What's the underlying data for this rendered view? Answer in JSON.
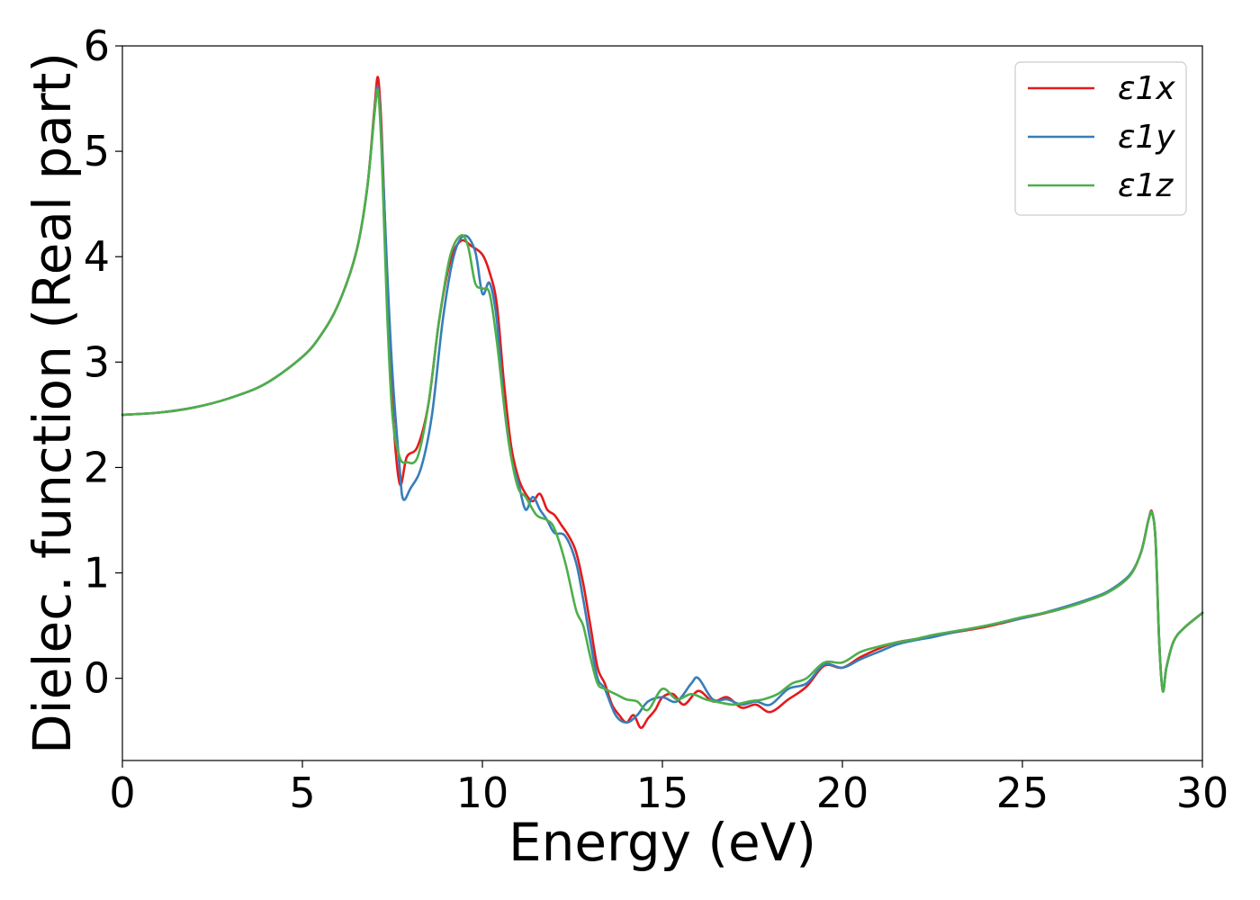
{
  "chart_data": {
    "type": "line",
    "title": "",
    "xlabel": "Energy (eV)",
    "ylabel": "Dielec. function (Real part)",
    "xlim": [
      0,
      30
    ],
    "ylim": [
      -0.78,
      6.0
    ],
    "xticks": [
      "0",
      "5",
      "10",
      "15",
      "20",
      "25",
      "30"
    ],
    "yticks": [
      "0",
      "1",
      "2",
      "3",
      "4",
      "5",
      "6"
    ],
    "grid": false,
    "legend_position": "top-right",
    "series": [
      {
        "name": "ε1x",
        "color": "#e41a1c",
        "points": [
          [
            0,
            2.5
          ],
          [
            1,
            2.52
          ],
          [
            2,
            2.57
          ],
          [
            3,
            2.66
          ],
          [
            4,
            2.8
          ],
          [
            5,
            3.05
          ],
          [
            5.5,
            3.25
          ],
          [
            6,
            3.55
          ],
          [
            6.5,
            4.05
          ],
          [
            6.8,
            4.65
          ],
          [
            7.0,
            5.4
          ],
          [
            7.1,
            5.7
          ],
          [
            7.2,
            5.2
          ],
          [
            7.35,
            3.8
          ],
          [
            7.5,
            2.6
          ],
          [
            7.7,
            1.85
          ],
          [
            7.9,
            2.1
          ],
          [
            8.2,
            2.2
          ],
          [
            8.5,
            2.6
          ],
          [
            8.8,
            3.4
          ],
          [
            9.1,
            3.95
          ],
          [
            9.4,
            4.15
          ],
          [
            9.7,
            4.1
          ],
          [
            10.0,
            4.02
          ],
          [
            10.2,
            3.85
          ],
          [
            10.4,
            3.55
          ],
          [
            10.6,
            2.8
          ],
          [
            10.8,
            2.2
          ],
          [
            11.0,
            1.9
          ],
          [
            11.2,
            1.75
          ],
          [
            11.4,
            1.68
          ],
          [
            11.6,
            1.75
          ],
          [
            11.8,
            1.6
          ],
          [
            12.0,
            1.55
          ],
          [
            12.2,
            1.45
          ],
          [
            12.4,
            1.35
          ],
          [
            12.6,
            1.2
          ],
          [
            12.8,
            0.9
          ],
          [
            13.0,
            0.5
          ],
          [
            13.2,
            0.1
          ],
          [
            13.4,
            -0.05
          ],
          [
            13.6,
            -0.25
          ],
          [
            13.8,
            -0.35
          ],
          [
            14.0,
            -0.42
          ],
          [
            14.2,
            -0.35
          ],
          [
            14.4,
            -0.47
          ],
          [
            14.6,
            -0.38
          ],
          [
            14.8,
            -0.3
          ],
          [
            15.0,
            -0.18
          ],
          [
            15.3,
            -0.15
          ],
          [
            15.6,
            -0.25
          ],
          [
            16.0,
            -0.12
          ],
          [
            16.4,
            -0.22
          ],
          [
            16.8,
            -0.18
          ],
          [
            17.2,
            -0.28
          ],
          [
            17.6,
            -0.25
          ],
          [
            18.0,
            -0.32
          ],
          [
            18.5,
            -0.2
          ],
          [
            19.0,
            -0.08
          ],
          [
            19.5,
            0.12
          ],
          [
            20.0,
            0.1
          ],
          [
            20.5,
            0.2
          ],
          [
            21.0,
            0.28
          ],
          [
            21.5,
            0.34
          ],
          [
            22.0,
            0.37
          ],
          [
            22.5,
            0.4
          ],
          [
            23.0,
            0.43
          ],
          [
            24.0,
            0.49
          ],
          [
            25.0,
            0.57
          ],
          [
            26.0,
            0.65
          ],
          [
            27.0,
            0.76
          ],
          [
            27.5,
            0.84
          ],
          [
            28.0,
            0.98
          ],
          [
            28.3,
            1.2
          ],
          [
            28.5,
            1.5
          ],
          [
            28.6,
            1.58
          ],
          [
            28.7,
            1.3
          ],
          [
            28.8,
            0.35
          ],
          [
            28.9,
            -0.12
          ],
          [
            29.0,
            0.1
          ],
          [
            29.2,
            0.35
          ],
          [
            29.5,
            0.48
          ],
          [
            30,
            0.62
          ]
        ]
      },
      {
        "name": "ε1y",
        "color": "#377eb8",
        "points": [
          [
            0,
            2.5
          ],
          [
            1,
            2.52
          ],
          [
            2,
            2.57
          ],
          [
            3,
            2.66
          ],
          [
            4,
            2.8
          ],
          [
            5,
            3.05
          ],
          [
            5.5,
            3.25
          ],
          [
            6,
            3.55
          ],
          [
            6.5,
            4.05
          ],
          [
            6.8,
            4.65
          ],
          [
            7.0,
            5.35
          ],
          [
            7.1,
            5.6
          ],
          [
            7.2,
            5.1
          ],
          [
            7.35,
            3.9
          ],
          [
            7.5,
            2.9
          ],
          [
            7.7,
            2.0
          ],
          [
            7.8,
            1.7
          ],
          [
            8.0,
            1.8
          ],
          [
            8.3,
            2.0
          ],
          [
            8.6,
            2.5
          ],
          [
            8.9,
            3.4
          ],
          [
            9.2,
            4.0
          ],
          [
            9.5,
            4.2
          ],
          [
            9.8,
            4.05
          ],
          [
            10.0,
            3.65
          ],
          [
            10.2,
            3.75
          ],
          [
            10.4,
            3.4
          ],
          [
            10.6,
            2.6
          ],
          [
            10.8,
            2.1
          ],
          [
            11.0,
            1.85
          ],
          [
            11.2,
            1.6
          ],
          [
            11.4,
            1.72
          ],
          [
            11.6,
            1.6
          ],
          [
            11.8,
            1.5
          ],
          [
            12.0,
            1.38
          ],
          [
            12.3,
            1.35
          ],
          [
            12.6,
            1.1
          ],
          [
            12.8,
            0.75
          ],
          [
            13.0,
            0.35
          ],
          [
            13.2,
            0.0
          ],
          [
            13.4,
            -0.1
          ],
          [
            13.7,
            -0.35
          ],
          [
            14.0,
            -0.42
          ],
          [
            14.3,
            -0.35
          ],
          [
            14.6,
            -0.22
          ],
          [
            15.0,
            -0.18
          ],
          [
            15.4,
            -0.22
          ],
          [
            15.8,
            -0.05
          ],
          [
            16.0,
            0.0
          ],
          [
            16.4,
            -0.2
          ],
          [
            16.8,
            -0.2
          ],
          [
            17.2,
            -0.25
          ],
          [
            17.6,
            -0.22
          ],
          [
            18.0,
            -0.25
          ],
          [
            18.5,
            -0.1
          ],
          [
            19.0,
            -0.05
          ],
          [
            19.5,
            0.13
          ],
          [
            20.0,
            0.1
          ],
          [
            20.5,
            0.18
          ],
          [
            21.0,
            0.25
          ],
          [
            21.5,
            0.32
          ],
          [
            22.0,
            0.36
          ],
          [
            22.5,
            0.39
          ],
          [
            23.0,
            0.43
          ],
          [
            24.0,
            0.5
          ],
          [
            25.0,
            0.57
          ],
          [
            26.0,
            0.66
          ],
          [
            27.0,
            0.77
          ],
          [
            27.5,
            0.85
          ],
          [
            28.0,
            0.99
          ],
          [
            28.3,
            1.2
          ],
          [
            28.5,
            1.5
          ],
          [
            28.6,
            1.57
          ],
          [
            28.7,
            1.3
          ],
          [
            28.8,
            0.35
          ],
          [
            28.9,
            -0.12
          ],
          [
            29.0,
            0.1
          ],
          [
            29.2,
            0.35
          ],
          [
            29.5,
            0.48
          ],
          [
            30,
            0.62
          ]
        ]
      },
      {
        "name": "ε1z",
        "color": "#4daf4a",
        "points": [
          [
            0,
            2.5
          ],
          [
            1,
            2.52
          ],
          [
            2,
            2.57
          ],
          [
            3,
            2.66
          ],
          [
            4,
            2.8
          ],
          [
            5,
            3.05
          ],
          [
            5.5,
            3.25
          ],
          [
            6,
            3.55
          ],
          [
            6.5,
            4.05
          ],
          [
            6.8,
            4.65
          ],
          [
            7.0,
            5.35
          ],
          [
            7.1,
            5.57
          ],
          [
            7.2,
            5.0
          ],
          [
            7.35,
            3.5
          ],
          [
            7.5,
            2.5
          ],
          [
            7.7,
            2.1
          ],
          [
            7.9,
            2.05
          ],
          [
            8.2,
            2.1
          ],
          [
            8.5,
            2.6
          ],
          [
            8.8,
            3.4
          ],
          [
            9.1,
            4.0
          ],
          [
            9.4,
            4.2
          ],
          [
            9.6,
            4.1
          ],
          [
            9.8,
            3.75
          ],
          [
            10.0,
            3.7
          ],
          [
            10.2,
            3.65
          ],
          [
            10.4,
            3.2
          ],
          [
            10.6,
            2.6
          ],
          [
            10.8,
            2.1
          ],
          [
            11.0,
            1.8
          ],
          [
            11.2,
            1.72
          ],
          [
            11.5,
            1.55
          ],
          [
            11.8,
            1.5
          ],
          [
            12.0,
            1.42
          ],
          [
            12.3,
            1.1
          ],
          [
            12.6,
            0.65
          ],
          [
            12.8,
            0.5
          ],
          [
            13.0,
            0.2
          ],
          [
            13.2,
            -0.05
          ],
          [
            13.4,
            -0.1
          ],
          [
            13.7,
            -0.15
          ],
          [
            14.0,
            -0.2
          ],
          [
            14.3,
            -0.22
          ],
          [
            14.6,
            -0.3
          ],
          [
            15.0,
            -0.1
          ],
          [
            15.4,
            -0.2
          ],
          [
            15.8,
            -0.15
          ],
          [
            16.2,
            -0.2
          ],
          [
            16.6,
            -0.23
          ],
          [
            17.0,
            -0.25
          ],
          [
            17.4,
            -0.22
          ],
          [
            17.8,
            -0.2
          ],
          [
            18.2,
            -0.15
          ],
          [
            18.6,
            -0.05
          ],
          [
            19.0,
            0.0
          ],
          [
            19.5,
            0.15
          ],
          [
            20.0,
            0.15
          ],
          [
            20.5,
            0.25
          ],
          [
            21.0,
            0.3
          ],
          [
            21.5,
            0.34
          ],
          [
            22.0,
            0.37
          ],
          [
            22.5,
            0.41
          ],
          [
            23.0,
            0.44
          ],
          [
            24.0,
            0.5
          ],
          [
            25.0,
            0.58
          ],
          [
            26.0,
            0.65
          ],
          [
            27.0,
            0.76
          ],
          [
            27.5,
            0.84
          ],
          [
            28.0,
            0.98
          ],
          [
            28.3,
            1.2
          ],
          [
            28.5,
            1.5
          ],
          [
            28.6,
            1.57
          ],
          [
            28.7,
            1.3
          ],
          [
            28.8,
            0.35
          ],
          [
            28.9,
            -0.12
          ],
          [
            29.0,
            0.1
          ],
          [
            29.2,
            0.35
          ],
          [
            29.5,
            0.48
          ],
          [
            30,
            0.62
          ]
        ]
      }
    ]
  }
}
